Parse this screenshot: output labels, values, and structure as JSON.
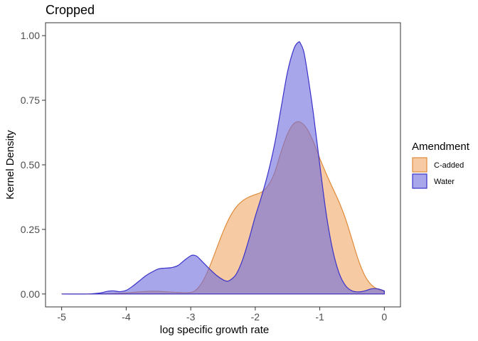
{
  "chart_data": {
    "type": "area",
    "title": "Cropped",
    "xlabel": "log specific growth rate",
    "ylabel": "Kernel Density",
    "xlim": [
      -5.25,
      0.25
    ],
    "ylim": [
      -0.05,
      1.05
    ],
    "x_ticks": [
      -5,
      -4,
      -3,
      -2,
      -1,
      0
    ],
    "x_tick_labels": [
      "-5",
      "-4",
      "-3",
      "-2",
      "-1",
      "0"
    ],
    "y_ticks": [
      0,
      0.25,
      0.5,
      0.75,
      1.0
    ],
    "y_tick_labels": [
      "0.00",
      "0.25",
      "0.50",
      "0.75",
      "1.00"
    ],
    "grid": false,
    "legend": {
      "title": "Amendment",
      "position": "right"
    },
    "series": [
      {
        "name": "C-added",
        "fill": "#f0a868",
        "stroke": "#e08a3a",
        "points": [
          [
            -5.0,
            0.0
          ],
          [
            -4.5,
            0.0
          ],
          [
            -4.2,
            0.002
          ],
          [
            -4.0,
            0.004
          ],
          [
            -3.8,
            0.008
          ],
          [
            -3.6,
            0.011
          ],
          [
            -3.4,
            0.009
          ],
          [
            -3.2,
            0.006
          ],
          [
            -3.0,
            0.006
          ],
          [
            -2.9,
            0.02
          ],
          [
            -2.8,
            0.055
          ],
          [
            -2.7,
            0.11
          ],
          [
            -2.6,
            0.175
          ],
          [
            -2.5,
            0.24
          ],
          [
            -2.4,
            0.295
          ],
          [
            -2.3,
            0.335
          ],
          [
            -2.2,
            0.36
          ],
          [
            -2.1,
            0.375
          ],
          [
            -2.0,
            0.385
          ],
          [
            -1.9,
            0.395
          ],
          [
            -1.8,
            0.42
          ],
          [
            -1.7,
            0.47
          ],
          [
            -1.6,
            0.55
          ],
          [
            -1.5,
            0.62
          ],
          [
            -1.4,
            0.66
          ],
          [
            -1.3,
            0.665
          ],
          [
            -1.2,
            0.64
          ],
          [
            -1.1,
            0.59
          ],
          [
            -1.0,
            0.525
          ],
          [
            -0.9,
            0.465
          ],
          [
            -0.8,
            0.41
          ],
          [
            -0.7,
            0.355
          ],
          [
            -0.6,
            0.29
          ],
          [
            -0.5,
            0.21
          ],
          [
            -0.4,
            0.13
          ],
          [
            -0.3,
            0.07
          ],
          [
            -0.2,
            0.035
          ],
          [
            -0.1,
            0.018
          ],
          [
            0.0,
            0.01
          ]
        ]
      },
      {
        "name": "Water",
        "fill": "#6d6bdd",
        "stroke": "#3a32c8",
        "points": [
          [
            -5.0,
            0.0
          ],
          [
            -4.6,
            0.0
          ],
          [
            -4.4,
            0.004
          ],
          [
            -4.3,
            0.01
          ],
          [
            -4.2,
            0.012
          ],
          [
            -4.1,
            0.009
          ],
          [
            -4.0,
            0.014
          ],
          [
            -3.9,
            0.03
          ],
          [
            -3.8,
            0.05
          ],
          [
            -3.7,
            0.07
          ],
          [
            -3.6,
            0.085
          ],
          [
            -3.5,
            0.097
          ],
          [
            -3.4,
            0.1
          ],
          [
            -3.3,
            0.102
          ],
          [
            -3.2,
            0.11
          ],
          [
            -3.1,
            0.13
          ],
          [
            -3.0,
            0.148
          ],
          [
            -2.95,
            0.15
          ],
          [
            -2.9,
            0.145
          ],
          [
            -2.8,
            0.12
          ],
          [
            -2.7,
            0.095
          ],
          [
            -2.6,
            0.072
          ],
          [
            -2.5,
            0.055
          ],
          [
            -2.45,
            0.05
          ],
          [
            -2.4,
            0.052
          ],
          [
            -2.3,
            0.075
          ],
          [
            -2.2,
            0.13
          ],
          [
            -2.1,
            0.21
          ],
          [
            -2.0,
            0.3
          ],
          [
            -1.9,
            0.38
          ],
          [
            -1.8,
            0.47
          ],
          [
            -1.7,
            0.58
          ],
          [
            -1.6,
            0.72
          ],
          [
            -1.5,
            0.86
          ],
          [
            -1.4,
            0.95
          ],
          [
            -1.33,
            0.975
          ],
          [
            -1.3,
            0.97
          ],
          [
            -1.25,
            0.94
          ],
          [
            -1.2,
            0.87
          ],
          [
            -1.1,
            0.7
          ],
          [
            -1.0,
            0.5
          ],
          [
            -0.9,
            0.31
          ],
          [
            -0.8,
            0.17
          ],
          [
            -0.7,
            0.08
          ],
          [
            -0.6,
            0.032
          ],
          [
            -0.5,
            0.012
          ],
          [
            -0.4,
            0.008
          ],
          [
            -0.3,
            0.012
          ],
          [
            -0.2,
            0.02
          ],
          [
            -0.1,
            0.02
          ],
          [
            0.0,
            0.012
          ]
        ]
      }
    ]
  }
}
